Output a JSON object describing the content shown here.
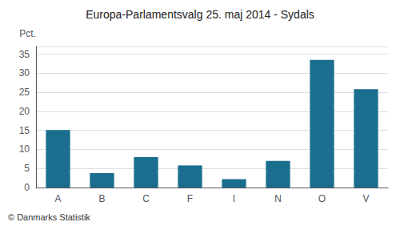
{
  "chart_data": {
    "type": "bar",
    "title": "Europa-Parlamentsvalg 25. maj 2014 - Sydals",
    "categories": [
      "A",
      "B",
      "C",
      "F",
      "I",
      "N",
      "O",
      "V"
    ],
    "values": [
      15.1,
      3.8,
      8.0,
      5.8,
      2.2,
      7.0,
      33.5,
      25.8
    ],
    "color": "#1a6e8e",
    "ylabel": "Pct.",
    "annotations": [
      "© Danmarks Statistik"
    ],
    "ylim": [
      0,
      37
    ],
    "yticks": [
      0,
      5,
      10,
      15,
      20,
      25,
      30,
      35
    ],
    "grid": true
  }
}
